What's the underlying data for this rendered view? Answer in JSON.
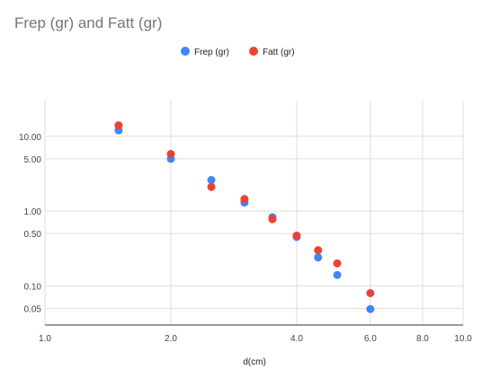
{
  "chart_data": {
    "type": "scatter",
    "title": "Frep (gr) and Fatt (gr)",
    "xlabel": "d(cm)",
    "ylabel": "",
    "x_scale": "log",
    "y_scale": "log",
    "xlim": [
      1.0,
      10.0
    ],
    "ylim": [
      0.03,
      30
    ],
    "x_ticks": [
      {
        "value": 1.0,
        "label": "1.0"
      },
      {
        "value": 2.0,
        "label": "2.0"
      },
      {
        "value": 4.0,
        "label": "4.0"
      },
      {
        "value": 6.0,
        "label": "6.0"
      },
      {
        "value": 8.0,
        "label": "8.0"
      },
      {
        "value": 10.0,
        "label": "10.0"
      }
    ],
    "y_ticks": [
      {
        "value": 10.0,
        "label": "10.00"
      },
      {
        "value": 5.0,
        "label": "5.00"
      },
      {
        "value": 1.0,
        "label": "1.00"
      },
      {
        "value": 0.5,
        "label": "0.50"
      },
      {
        "value": 0.1,
        "label": "0.10"
      },
      {
        "value": 0.05,
        "label": "0.05"
      }
    ],
    "grid": true,
    "legend_position": "top-center",
    "series": [
      {
        "name": "Frep (gr)",
        "color": "#4285f4",
        "points": [
          {
            "x": 1.5,
            "y": 12.0
          },
          {
            "x": 2.0,
            "y": 5.0
          },
          {
            "x": 2.5,
            "y": 2.6
          },
          {
            "x": 3.0,
            "y": 1.3
          },
          {
            "x": 3.5,
            "y": 0.83
          },
          {
            "x": 4.0,
            "y": 0.45
          },
          {
            "x": 4.5,
            "y": 0.24
          },
          {
            "x": 5.0,
            "y": 0.14
          },
          {
            "x": 6.0,
            "y": 0.049
          }
        ]
      },
      {
        "name": "Fatt (gr)",
        "color": "#ea4335",
        "points": [
          {
            "x": 1.5,
            "y": 14.0
          },
          {
            "x": 2.0,
            "y": 5.8
          },
          {
            "x": 2.5,
            "y": 2.1
          },
          {
            "x": 3.0,
            "y": 1.45
          },
          {
            "x": 3.5,
            "y": 0.78
          },
          {
            "x": 4.0,
            "y": 0.47
          },
          {
            "x": 4.5,
            "y": 0.3
          },
          {
            "x": 5.0,
            "y": 0.2
          },
          {
            "x": 6.0,
            "y": 0.08
          }
        ]
      }
    ]
  }
}
